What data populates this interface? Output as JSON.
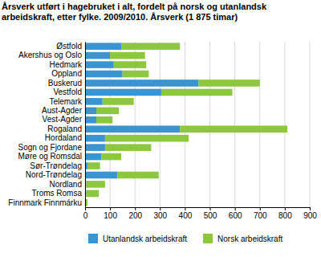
{
  "chart_data": {
    "type": "bar",
    "orientation": "horizontal",
    "stacked": true,
    "grid": true,
    "legend": "bottom",
    "title": "Årsverk utført i hagebruket i alt, fordelt på norsk og utanlandsk arbeidskraft, etter fylke. 2009/2010. Årsverk (1 875 timar)",
    "categories": [
      "Østfold",
      "Akershus og Oslo",
      "Hedmark",
      "Oppland",
      "Buskerud",
      "Vestfold",
      "Telemark",
      "Aust-Agder",
      "Vest-Agder",
      "Rogaland",
      "Hordaland",
      "Sogn og Fjordane",
      "Møre og Romsdal",
      "Sør-Trøndelag",
      "Nord-Trøndelag",
      "Nordland",
      "Troms Romsa",
      "Finnmark Finnmárku"
    ],
    "series": [
      {
        "name": "Utanlandsk arbeidskraft",
        "color": "#3a94cf",
        "values": [
          145,
          100,
          115,
          150,
          455,
          305,
          70,
          45,
          45,
          380,
          80,
          80,
          65,
          10,
          130,
          5,
          5,
          2
        ]
      },
      {
        "name": "Norsk arbeidskraft",
        "color": "#8dc63f",
        "values": [
          235,
          140,
          130,
          105,
          245,
          285,
          125,
          90,
          65,
          430,
          335,
          185,
          80,
          50,
          165,
          75,
          50,
          8
        ]
      }
    ],
    "xlim": [
      0,
      900
    ],
    "xticks": [
      0,
      100,
      200,
      300,
      400,
      500,
      600,
      700,
      800,
      900
    ]
  }
}
